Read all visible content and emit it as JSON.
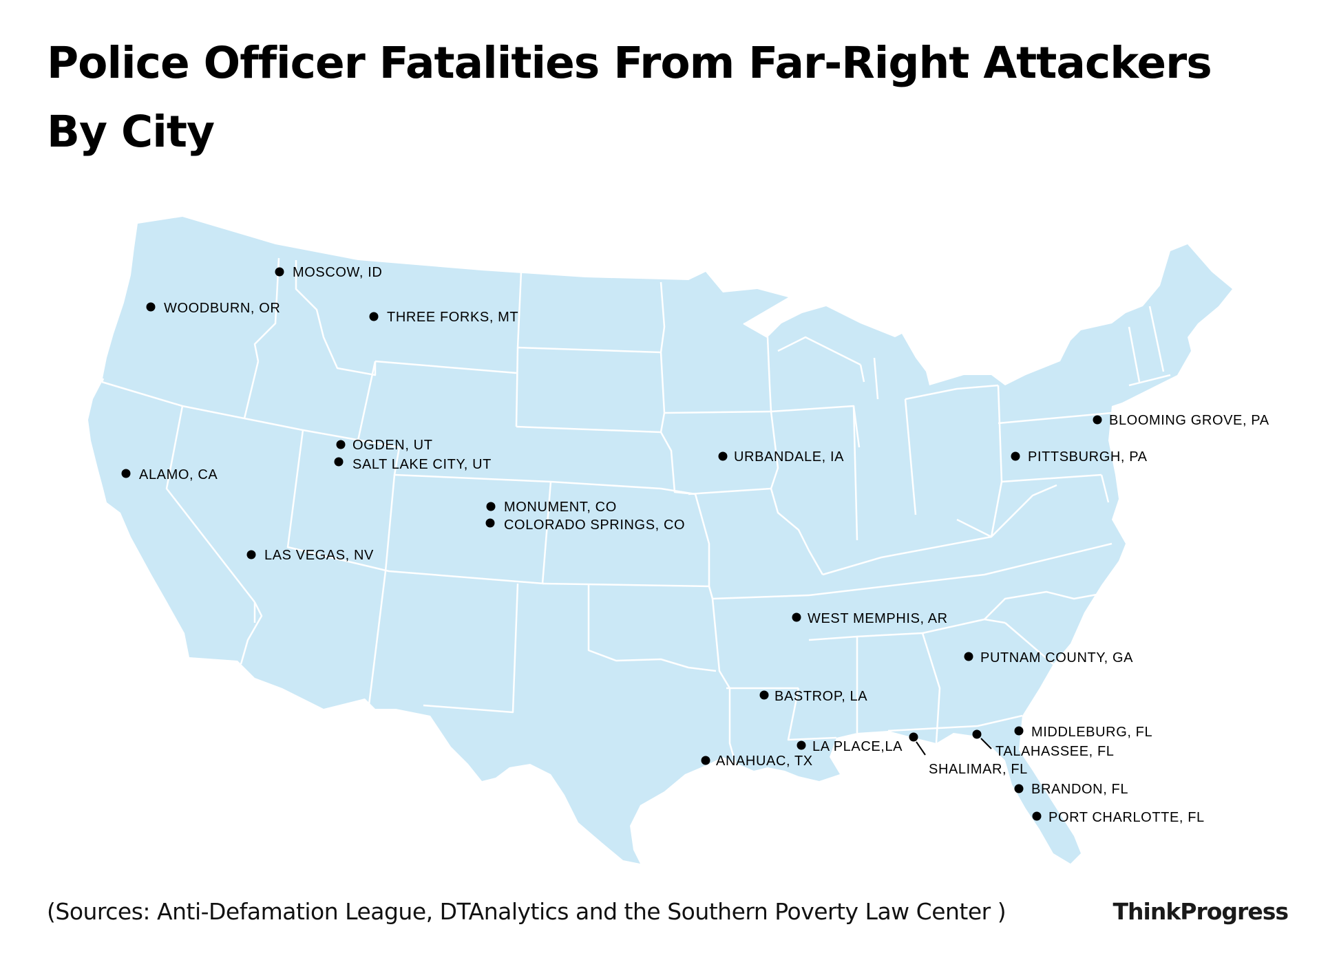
{
  "title": {
    "line1": "Police Officer Fatalities From Far-Right Attackers",
    "line2": "By City"
  },
  "source": "(Sources: Anti-Defamation League, DTAnalytics and the Southern Poverty Law Center )",
  "brand": "ThinkProgress",
  "colors": {
    "land": "#cbe8f6",
    "borders": "#ffffff",
    "marker": "#000000",
    "text": "#000000"
  },
  "cities": [
    {
      "label": "MOSCOW, ID"
    },
    {
      "label": "WOODBURN, OR"
    },
    {
      "label": "THREE FORKS, MT"
    },
    {
      "label": "ALAMO, CA"
    },
    {
      "label": "OGDEN, UT"
    },
    {
      "label": "SALT LAKE CITY, UT"
    },
    {
      "label": "MONUMENT, CO"
    },
    {
      "label": "COLORADO SPRINGS, CO"
    },
    {
      "label": "LAS VEGAS, NV"
    },
    {
      "label": "URBANDALE, IA"
    },
    {
      "label": "BLOOMING GROVE, PA"
    },
    {
      "label": "PITTSBURGH, PA"
    },
    {
      "label": "WEST MEMPHIS, AR"
    },
    {
      "label": "PUTNAM COUNTY, GA"
    },
    {
      "label": "BASTROP, LA"
    },
    {
      "label": "MIDDLEBURG, FL"
    },
    {
      "label": "LA PLACE,LA"
    },
    {
      "label": "TALAHASSEE, FL"
    },
    {
      "label": "ANAHUAC, TX"
    },
    {
      "label": "SHALIMAR, FL"
    },
    {
      "label": "BRANDON, FL"
    },
    {
      "label": "PORT CHARLOTTE, FL"
    }
  ]
}
